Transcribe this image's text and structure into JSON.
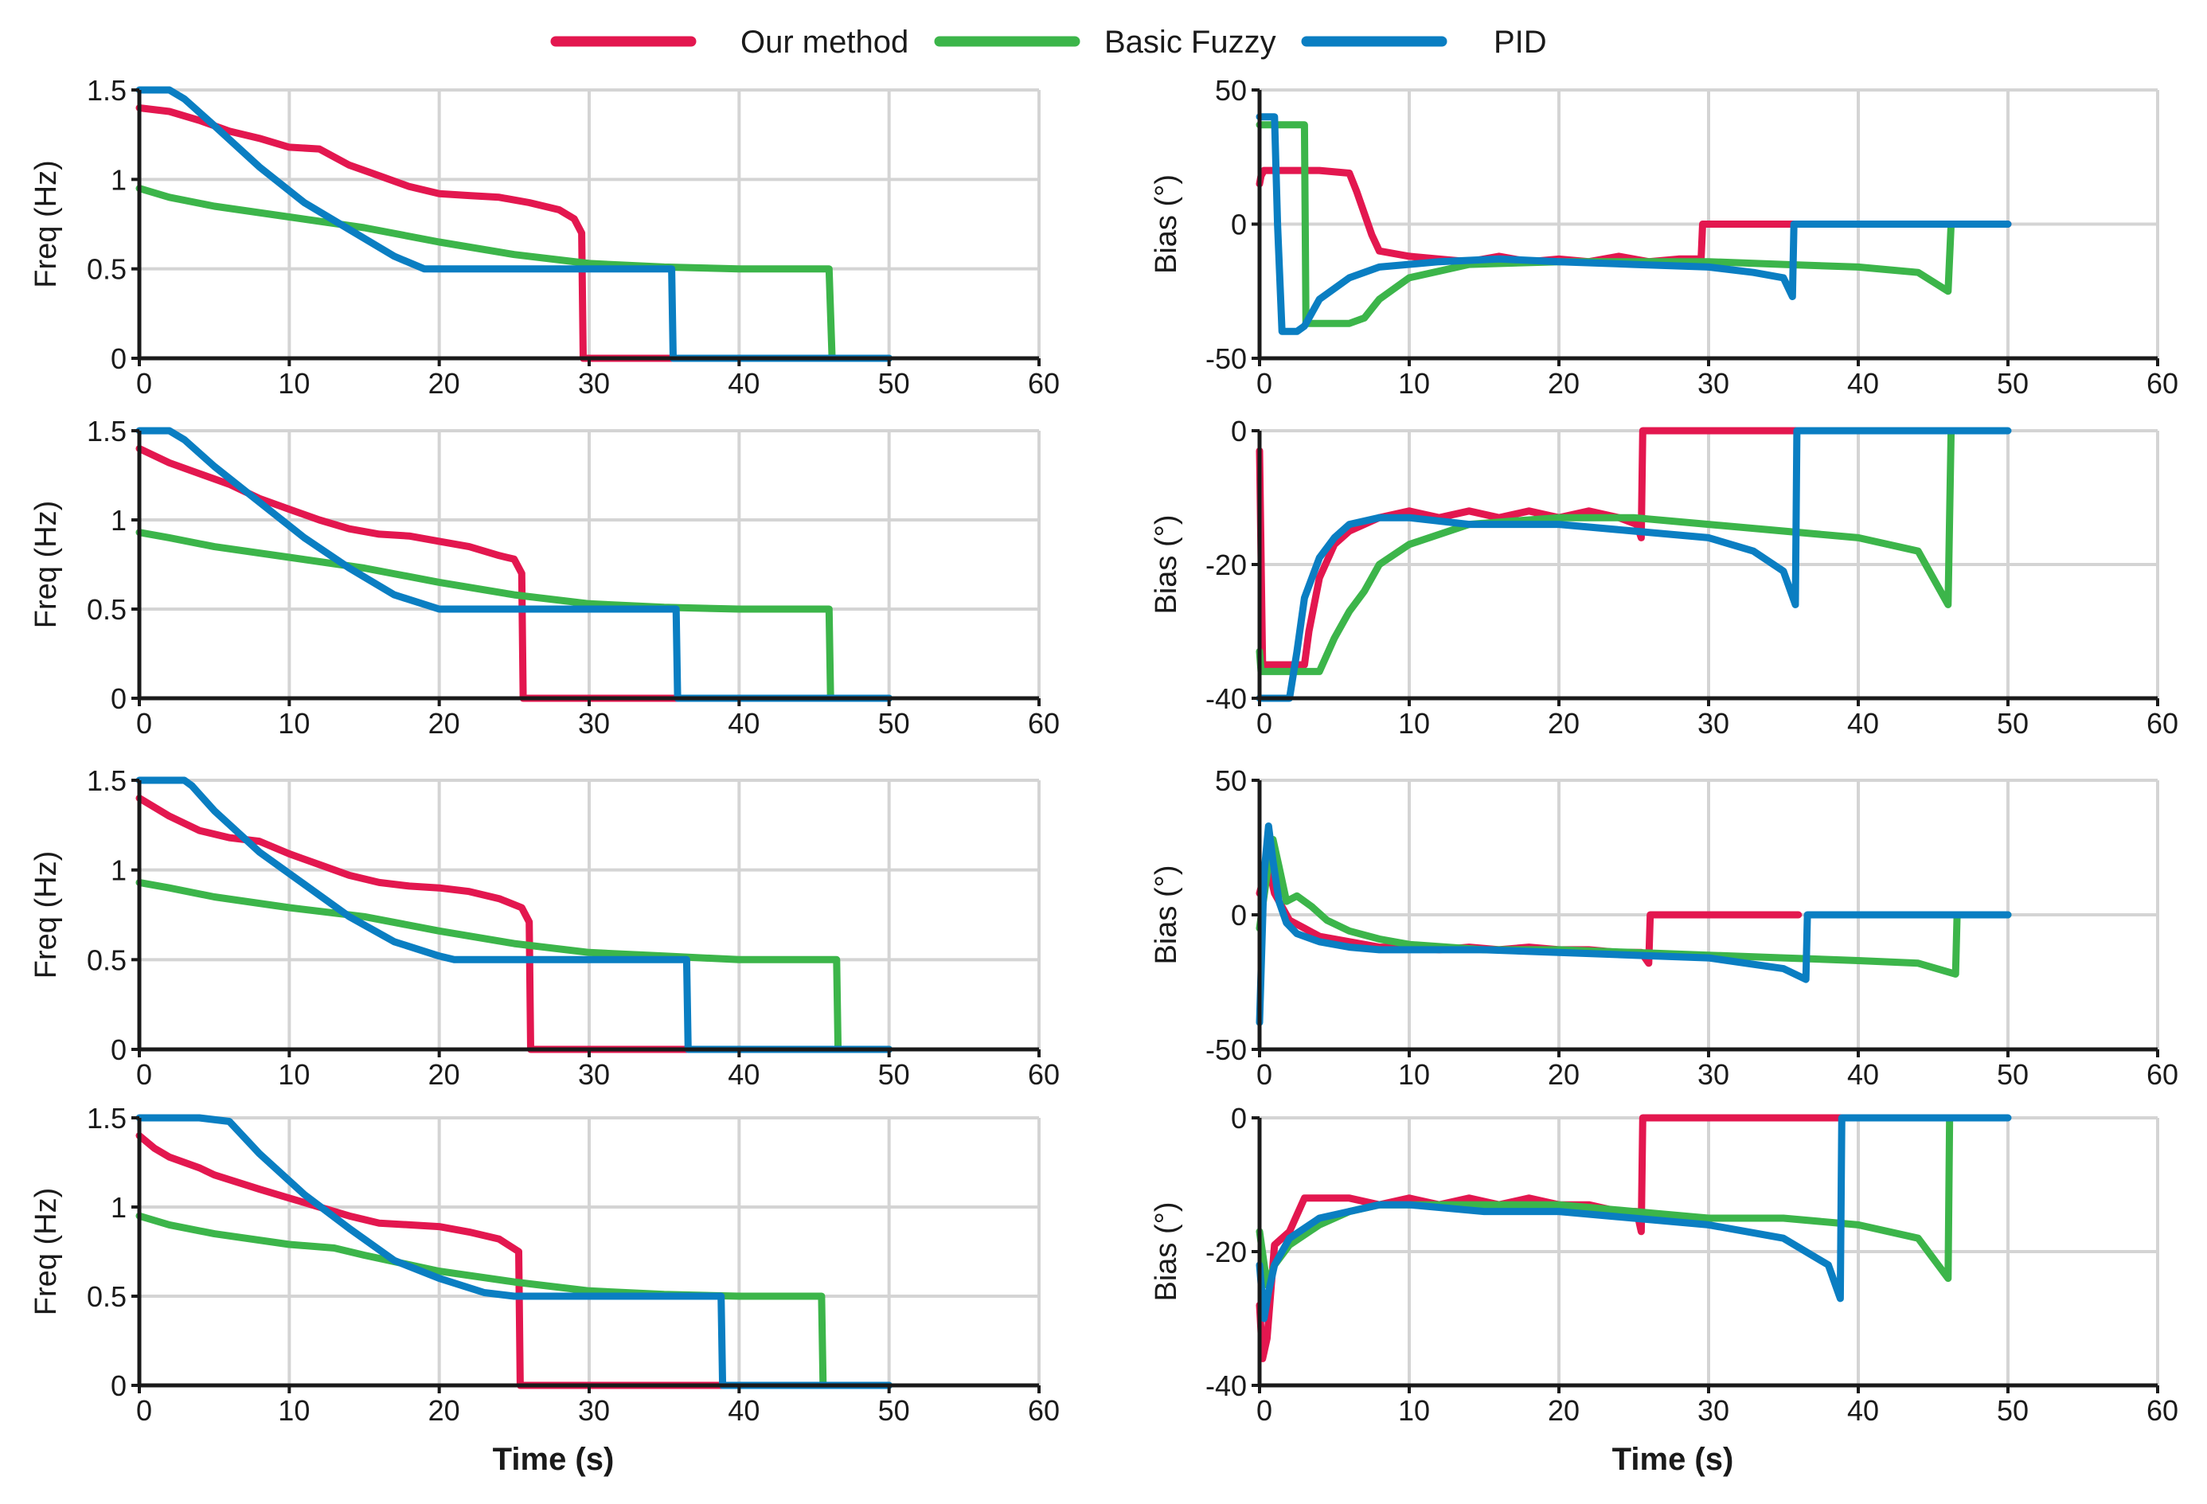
{
  "colors": {
    "our": "#e3174f",
    "fuzzy": "#3cb54a",
    "pid": "#0a7ec2",
    "grid": "#d4d4d4",
    "axis": "#1a1a1a"
  },
  "legend": {
    "items": [
      {
        "name": "Our method",
        "color": "#e3174f"
      },
      {
        "name": "Basic Fuzzy",
        "color": "#3cb54a"
      },
      {
        "name": "PID",
        "color": "#0a7ec2"
      }
    ]
  },
  "chart_data": [
    {
      "type": "line",
      "title": "",
      "xlabel": "",
      "ylabel": "Freq (Hz)",
      "xlim": [
        0,
        60
      ],
      "ylim": [
        0,
        1.5
      ],
      "xticks": [
        0,
        10,
        20,
        30,
        40,
        50,
        60
      ],
      "yticks": [
        0,
        0.5,
        1,
        1.5
      ],
      "series": [
        {
          "name": "Our method",
          "x": [
            0,
            2,
            4,
            6,
            8,
            10,
            12,
            14,
            16,
            18,
            20,
            22,
            24,
            26,
            28,
            29,
            29.5,
            29.6,
            35.5
          ],
          "y": [
            1.4,
            1.38,
            1.33,
            1.27,
            1.23,
            1.18,
            1.17,
            1.08,
            1.02,
            0.96,
            0.92,
            0.91,
            0.9,
            0.87,
            0.83,
            0.78,
            0.7,
            0,
            0
          ]
        },
        {
          "name": "Basic Fuzzy",
          "x": [
            0,
            2,
            5,
            10,
            15,
            20,
            25,
            30,
            35,
            40,
            46,
            46.2,
            50
          ],
          "y": [
            0.95,
            0.9,
            0.85,
            0.79,
            0.73,
            0.65,
            0.58,
            0.53,
            0.51,
            0.5,
            0.5,
            0,
            0
          ]
        },
        {
          "name": "PID",
          "x": [
            0,
            2,
            3,
            5,
            8,
            11,
            14,
            17,
            19,
            20,
            25,
            30,
            35.5,
            35.6,
            50
          ],
          "y": [
            1.5,
            1.5,
            1.45,
            1.3,
            1.07,
            0.87,
            0.72,
            0.57,
            0.5,
            0.5,
            0.5,
            0.5,
            0.5,
            0,
            0
          ]
        }
      ]
    },
    {
      "type": "line",
      "title": "",
      "xlabel": "",
      "ylabel": "Bias (°)",
      "xlim": [
        0,
        60
      ],
      "ylim": [
        -50,
        50
      ],
      "xticks": [
        0,
        10,
        20,
        30,
        40,
        50,
        60
      ],
      "yticks": [
        -50,
        0,
        50
      ],
      "series": [
        {
          "name": "Our method",
          "x": [
            0,
            0.1,
            0.3,
            2,
            4,
            6,
            6.5,
            7.5,
            8,
            10,
            12,
            14,
            16,
            18,
            20,
            22,
            24,
            26,
            28,
            29.5,
            29.6,
            35,
            50
          ],
          "y": [
            15,
            18,
            20,
            20,
            20,
            19,
            12,
            -4,
            -10,
            -12,
            -13,
            -14,
            -12,
            -14,
            -13,
            -14,
            -12,
            -14,
            -13,
            -13,
            0,
            0,
            0
          ]
        },
        {
          "name": "Basic Fuzzy",
          "x": [
            0,
            3,
            3.1,
            4,
            5,
            6,
            7,
            8,
            10,
            14,
            20,
            25,
            30,
            35,
            40,
            44,
            46,
            46.2,
            46.3
          ],
          "y": [
            37,
            37,
            -37,
            -37,
            -37,
            -37,
            -35,
            -28,
            -20,
            -15,
            -14,
            -14,
            -14,
            -15,
            -16,
            -18,
            -25,
            0,
            0
          ]
        },
        {
          "name": "PID",
          "x": [
            0,
            1,
            1.2,
            1.5,
            2,
            2.5,
            3,
            4,
            6,
            8,
            12,
            16,
            20,
            25,
            30,
            33,
            35,
            35.6,
            35.7,
            50
          ],
          "y": [
            40,
            40,
            0,
            -40,
            -40,
            -40,
            -38,
            -28,
            -20,
            -16,
            -14,
            -13,
            -14,
            -15,
            -16,
            -18,
            -20,
            -27,
            0,
            0
          ]
        }
      ]
    },
    {
      "type": "line",
      "title": "",
      "xlabel": "",
      "ylabel": "Freq (Hz)",
      "xlim": [
        0,
        60
      ],
      "ylim": [
        0,
        1.5
      ],
      "xticks": [
        0,
        10,
        20,
        30,
        40,
        50,
        60
      ],
      "yticks": [
        0,
        0.5,
        1,
        1.5
      ],
      "series": [
        {
          "name": "Our method",
          "x": [
            0,
            2,
            4,
            6,
            8,
            10,
            12,
            14,
            16,
            18,
            20,
            22,
            24,
            25,
            25.5,
            25.6,
            36
          ],
          "y": [
            1.4,
            1.32,
            1.26,
            1.2,
            1.12,
            1.06,
            1.0,
            0.95,
            0.92,
            0.91,
            0.88,
            0.85,
            0.8,
            0.78,
            0.7,
            0,
            0
          ]
        },
        {
          "name": "Basic Fuzzy",
          "x": [
            0,
            2,
            5,
            10,
            15,
            20,
            25,
            30,
            35,
            40,
            46,
            46.1,
            50
          ],
          "y": [
            0.93,
            0.9,
            0.85,
            0.79,
            0.73,
            0.65,
            0.58,
            0.53,
            0.51,
            0.5,
            0.5,
            0,
            0
          ]
        },
        {
          "name": "PID",
          "x": [
            0,
            2,
            3,
            5,
            8,
            11,
            14,
            17,
            20,
            25,
            35.8,
            35.9,
            50
          ],
          "y": [
            1.5,
            1.5,
            1.45,
            1.3,
            1.1,
            0.9,
            0.73,
            0.58,
            0.5,
            0.5,
            0.5,
            0,
            0
          ]
        }
      ]
    },
    {
      "type": "line",
      "title": "",
      "xlabel": "",
      "ylabel": "Bias (°)",
      "xlim": [
        0,
        60
      ],
      "ylim": [
        -40,
        0
      ],
      "xticks": [
        0,
        10,
        20,
        30,
        40,
        50,
        60
      ],
      "yticks": [
        -40,
        -20,
        0
      ],
      "series": [
        {
          "name": "Our method",
          "x": [
            0,
            0.2,
            3,
            3.3,
            4,
            5,
            6,
            8,
            10,
            12,
            14,
            16,
            18,
            20,
            22,
            24,
            25.2,
            25.5,
            25.6,
            36
          ],
          "y": [
            -3,
            -35,
            -35,
            -30,
            -22,
            -17,
            -15,
            -13,
            -12,
            -13,
            -12,
            -13,
            -12,
            -13,
            -12,
            -13,
            -14,
            -16,
            0,
            0
          ]
        },
        {
          "name": "Basic Fuzzy",
          "x": [
            0,
            0.1,
            2,
            4,
            5,
            6,
            7,
            8,
            10,
            14,
            20,
            25,
            30,
            35,
            40,
            44,
            46,
            46.2
          ],
          "y": [
            -33,
            -36,
            -36,
            -36,
            -31,
            -27,
            -24,
            -20,
            -17,
            -14,
            -13,
            -13,
            -14,
            -15,
            -16,
            -18,
            -26,
            0
          ]
        },
        {
          "name": "PID",
          "x": [
            0,
            2,
            2.5,
            3,
            4,
            5,
            6,
            8,
            10,
            14,
            20,
            25,
            30,
            33,
            35,
            35.8,
            35.9,
            50
          ],
          "y": [
            -40,
            -40,
            -33,
            -25,
            -19,
            -16,
            -14,
            -13,
            -13,
            -14,
            -14,
            -15,
            -16,
            -18,
            -21,
            -26,
            0,
            0
          ]
        }
      ]
    },
    {
      "type": "line",
      "title": "",
      "xlabel": "",
      "ylabel": "Freq (Hz)",
      "xlim": [
        0,
        60
      ],
      "ylim": [
        0,
        1.5
      ],
      "xticks": [
        0,
        10,
        20,
        30,
        40,
        50,
        60
      ],
      "yticks": [
        0,
        0.5,
        1,
        1.5
      ],
      "series": [
        {
          "name": "Our method",
          "x": [
            0,
            2,
            4,
            6,
            8,
            10,
            12,
            14,
            16,
            18,
            20,
            22,
            24,
            25.5,
            26,
            26.1,
            36.5
          ],
          "y": [
            1.4,
            1.3,
            1.22,
            1.18,
            1.16,
            1.09,
            1.03,
            0.97,
            0.93,
            0.91,
            0.9,
            0.88,
            0.84,
            0.79,
            0.71,
            0,
            0
          ]
        },
        {
          "name": "Basic Fuzzy",
          "x": [
            0,
            2,
            5,
            10,
            15,
            20,
            25,
            30,
            35,
            40,
            46.5,
            46.6,
            50
          ],
          "y": [
            0.93,
            0.9,
            0.85,
            0.79,
            0.74,
            0.66,
            0.59,
            0.54,
            0.52,
            0.5,
            0.5,
            0,
            0
          ]
        },
        {
          "name": "PID",
          "x": [
            0,
            3,
            3.5,
            5,
            8,
            11,
            14,
            17,
            20,
            21,
            25,
            36.5,
            36.6,
            50
          ],
          "y": [
            1.5,
            1.5,
            1.47,
            1.33,
            1.1,
            0.92,
            0.74,
            0.6,
            0.52,
            0.5,
            0.5,
            0.5,
            0,
            0
          ]
        }
      ]
    },
    {
      "type": "line",
      "title": "",
      "xlabel": "",
      "ylabel": "Bias (°)",
      "xlim": [
        0,
        60
      ],
      "ylim": [
        -50,
        50
      ],
      "xticks": [
        0,
        10,
        20,
        30,
        40,
        50,
        60
      ],
      "yticks": [
        -50,
        0,
        50
      ],
      "series": [
        {
          "name": "Our method",
          "x": [
            0,
            0.3,
            0.6,
            1,
            2,
            3,
            4,
            6,
            8,
            10,
            12,
            14,
            16,
            18,
            20,
            22,
            24,
            25.5,
            26,
            26.1,
            36
          ],
          "y": [
            8,
            14,
            18,
            8,
            -2,
            -5,
            -8,
            -10,
            -12,
            -12,
            -13,
            -12,
            -13,
            -12,
            -13,
            -13,
            -14,
            -14,
            -18,
            0,
            0
          ]
        },
        {
          "name": "Basic Fuzzy",
          "x": [
            0,
            0.5,
            0.9,
            1.3,
            1.8,
            2.5,
            3.5,
            4.5,
            6,
            8,
            10,
            15,
            20,
            25,
            30,
            35,
            40,
            44,
            46.5,
            46.6,
            50
          ],
          "y": [
            -5,
            15,
            28,
            18,
            5,
            7,
            3,
            -2,
            -6,
            -9,
            -11,
            -13,
            -13,
            -14,
            -15,
            -16,
            -17,
            -18,
            -22,
            0,
            0
          ]
        },
        {
          "name": "PID",
          "x": [
            0,
            0.3,
            0.6,
            0.9,
            1.3,
            1.8,
            2.5,
            4,
            6,
            8,
            10,
            15,
            20,
            25,
            30,
            35,
            36.5,
            36.6,
            50
          ],
          "y": [
            -40,
            15,
            33,
            20,
            5,
            -3,
            -7,
            -10,
            -12,
            -13,
            -13,
            -13,
            -14,
            -15,
            -16,
            -20,
            -24,
            0,
            0
          ]
        }
      ]
    },
    {
      "type": "line",
      "title": "",
      "xlabel": "Time (s)",
      "ylabel": "Freq (Hz)",
      "xlim": [
        0,
        60
      ],
      "ylim": [
        0,
        1.5
      ],
      "xticks": [
        0,
        10,
        20,
        30,
        40,
        50,
        60
      ],
      "yticks": [
        0,
        0.5,
        1,
        1.5
      ],
      "series": [
        {
          "name": "Our method",
          "x": [
            0,
            1,
            2,
            4,
            5,
            8,
            10,
            12,
            14,
            16,
            18,
            20,
            22,
            24,
            25.3,
            25.4,
            39
          ],
          "y": [
            1.4,
            1.33,
            1.28,
            1.22,
            1.18,
            1.1,
            1.05,
            1.0,
            0.95,
            0.91,
            0.9,
            0.89,
            0.86,
            0.82,
            0.75,
            0,
            0
          ]
        },
        {
          "name": "Basic Fuzzy",
          "x": [
            0,
            2,
            5,
            10,
            13,
            15,
            20,
            25,
            30,
            35,
            40,
            45.5,
            45.6,
            50
          ],
          "y": [
            0.95,
            0.9,
            0.85,
            0.79,
            0.77,
            0.73,
            0.64,
            0.58,
            0.53,
            0.51,
            0.5,
            0.5,
            0,
            0
          ]
        },
        {
          "name": "PID",
          "x": [
            0,
            4,
            6,
            8,
            11,
            14,
            17,
            20,
            23,
            25,
            30,
            38.8,
            38.9,
            50
          ],
          "y": [
            1.5,
            1.5,
            1.48,
            1.3,
            1.07,
            0.88,
            0.7,
            0.6,
            0.52,
            0.5,
            0.5,
            0.5,
            0,
            0
          ]
        }
      ]
    },
    {
      "type": "line",
      "title": "",
      "xlabel": "Time (s)",
      "ylabel": "Bias (°)",
      "xlim": [
        0,
        60
      ],
      "ylim": [
        -40,
        0
      ],
      "xticks": [
        0,
        10,
        20,
        30,
        40,
        50,
        60
      ],
      "yticks": [
        -40,
        -20,
        0
      ],
      "series": [
        {
          "name": "Our method",
          "x": [
            0,
            0.2,
            0.5,
            1,
            2,
            3,
            4,
            6,
            8,
            10,
            12,
            14,
            16,
            18,
            20,
            22,
            24,
            25.2,
            25.5,
            25.6,
            39
          ],
          "y": [
            -28,
            -36,
            -33,
            -19,
            -17,
            -12,
            -12,
            -12,
            -13,
            -12,
            -13,
            -12,
            -13,
            -12,
            -13,
            -13,
            -14,
            -14,
            -17,
            0,
            0
          ]
        },
        {
          "name": "Basic Fuzzy",
          "x": [
            0,
            0.5,
            1,
            2,
            4,
            6,
            8,
            10,
            15,
            20,
            25,
            30,
            35,
            40,
            44,
            46,
            46.1
          ],
          "y": [
            -17,
            -25,
            -22,
            -19,
            -16,
            -14,
            -13,
            -13,
            -13,
            -13,
            -14,
            -15,
            -15,
            -16,
            -18,
            -24,
            0
          ]
        },
        {
          "name": "PID",
          "x": [
            0,
            0.3,
            0.6,
            1,
            2,
            4,
            6,
            8,
            10,
            15,
            20,
            25,
            30,
            35,
            38,
            38.8,
            38.9,
            50
          ],
          "y": [
            -22,
            -30,
            -26,
            -22,
            -18,
            -15,
            -14,
            -13,
            -13,
            -14,
            -14,
            -15,
            -16,
            -18,
            -22,
            -27,
            0,
            0
          ]
        }
      ]
    }
  ]
}
